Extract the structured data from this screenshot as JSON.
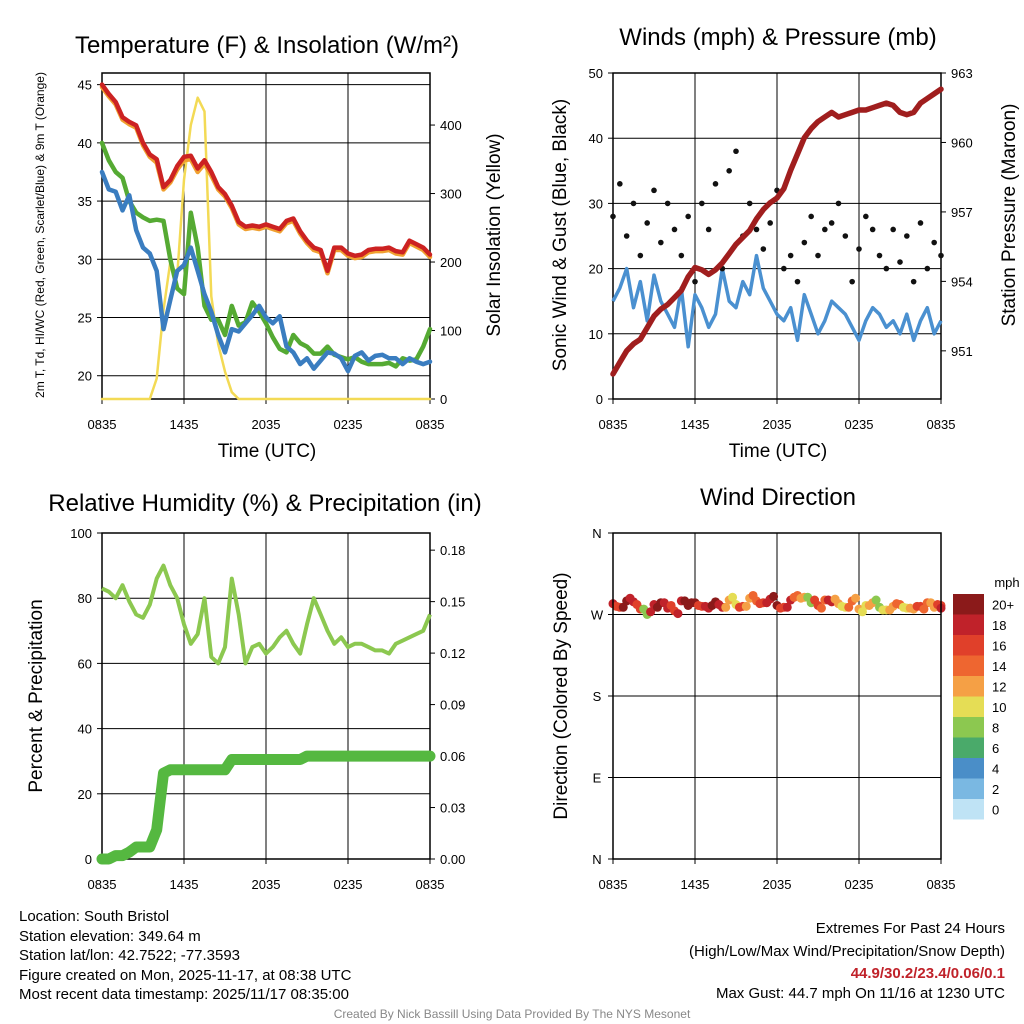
{
  "chart_data": [
    {
      "type": "line",
      "title": "Temperature (F) & Insolation (W/m²)",
      "xlabel": "Time (UTC)",
      "ylabel": "2m T, Td, HI/WC (Red, Green, Scarlet/Blue) & 9m T (Orange)",
      "y2label": "Solar Insolation (Yellow)",
      "x_ticks": [
        "0835",
        "1435",
        "2035",
        "0235",
        "0835"
      ],
      "ylim": [
        18,
        46
      ],
      "y_ticks": [
        20,
        25,
        30,
        35,
        40,
        45
      ],
      "y2lim": [
        0,
        476
      ],
      "y2_ticks": [
        0,
        100,
        200,
        300,
        400
      ],
      "hours": [
        0,
        0.5,
        1,
        1.5,
        2,
        2.5,
        3,
        3.5,
        4,
        4.5,
        5,
        5.5,
        6,
        6.5,
        7,
        7.5,
        8,
        8.5,
        9,
        9.5,
        10,
        10.5,
        11,
        11.5,
        12,
        12.5,
        13,
        13.5,
        14,
        14.5,
        15,
        15.5,
        16,
        16.5,
        17,
        17.5,
        18,
        18.5,
        19,
        19.5,
        20,
        20.5,
        21,
        21.5,
        22,
        22.5,
        23,
        23.5,
        24
      ],
      "series": [
        {
          "name": "2m T",
          "color": "#cc2222",
          "values": [
            45,
            44.2,
            43.5,
            42.2,
            41.8,
            41.5,
            40,
            39,
            38.6,
            36.2,
            36.8,
            38,
            38.8,
            38.9,
            37.8,
            38.5,
            37.5,
            36.2,
            35.6,
            34.6,
            33.2,
            32.8,
            32.9,
            32.8,
            33,
            32.8,
            32.6,
            33.3,
            33.5,
            32.4,
            31.6,
            31,
            30.8,
            29,
            31,
            31,
            30.5,
            30.3,
            30.4,
            30.8,
            30.9,
            30.9,
            31,
            30.7,
            30.6,
            31.6,
            31.3,
            31,
            30.4
          ]
        },
        {
          "name": "9m T",
          "color": "#f0a030",
          "values": [
            44.8,
            44,
            43.3,
            42,
            41.6,
            41.3,
            39.8,
            38.8,
            38.3,
            36,
            36.6,
            37.7,
            38.5,
            38.6,
            37.5,
            38.2,
            37.2,
            36,
            35.4,
            34.4,
            33,
            32.6,
            32.7,
            32.6,
            32.8,
            32.6,
            32.4,
            33.1,
            33.3,
            32.2,
            31.4,
            30.8,
            30.6,
            28.8,
            30.8,
            30.8,
            30.3,
            30.1,
            30.2,
            30.6,
            30.7,
            30.7,
            30.8,
            30.5,
            30.4,
            31.4,
            31.1,
            30.8,
            30.2
          ]
        },
        {
          "name": "Td",
          "color": "#55aa33",
          "values": [
            40,
            38.5,
            37.5,
            37,
            35,
            34,
            33.6,
            33.3,
            33.4,
            33.3,
            30,
            27.5,
            27,
            34,
            31,
            26,
            24.8,
            24.8,
            23.5,
            26,
            24.3,
            24.6,
            26.3,
            25.5,
            24.5,
            23.3,
            22.3,
            22,
            23.5,
            22.8,
            22.5,
            21.9,
            21.9,
            22.5,
            21.8,
            21.6,
            21.4,
            21.6,
            21.2,
            21,
            21,
            21,
            21.1,
            20.8,
            21.5,
            21.3,
            21.4,
            22.5,
            24
          ]
        },
        {
          "name": "HI/WC",
          "color": "#3a7dc0",
          "values": [
            37.5,
            36,
            35.8,
            34.2,
            35.5,
            32.5,
            31,
            30.5,
            29,
            24,
            26.5,
            29,
            29.5,
            31,
            29,
            27,
            25.5,
            23.5,
            22,
            24,
            23.8,
            24.5,
            25.2,
            26,
            25,
            24.5,
            25.1,
            22.5,
            22,
            21,
            21.5,
            20.6,
            21.3,
            22,
            21.9,
            21.5,
            20.4,
            21.7,
            22,
            21.3,
            21.7,
            21.8,
            21.5,
            21.5,
            21,
            21.5,
            21.2,
            21,
            21.2
          ]
        },
        {
          "name": "Solar",
          "color": "#f3da55",
          "values": [
            0,
            0,
            0,
            0,
            0,
            0,
            0,
            0,
            30,
            130,
            200,
            180,
            320,
            400,
            440,
            420,
            150,
            80,
            40,
            10,
            0,
            0,
            0,
            0,
            0,
            0,
            0,
            0,
            0,
            0,
            0,
            0,
            0,
            0,
            0,
            0,
            0,
            0,
            0,
            0,
            0,
            0,
            0,
            0,
            0,
            0,
            0,
            0,
            0
          ]
        }
      ]
    },
    {
      "type": "line+scatter",
      "title": "Winds (mph) & Pressure (mb)",
      "xlabel": "Time (UTC)",
      "ylabel": "Sonic Wind & Gust (Blue, Black)",
      "y2label": "Station Pressure (Maroon)",
      "x_ticks": [
        "0835",
        "1435",
        "2035",
        "0235",
        "0835"
      ],
      "ylim": [
        0,
        50
      ],
      "y_ticks": [
        0,
        10,
        20,
        30,
        40,
        50
      ],
      "y2lim": [
        948.92,
        963
      ],
      "y2_ticks": [
        951,
        954,
        957,
        960,
        963
      ],
      "hours": [
        0,
        0.5,
        1,
        1.5,
        2,
        2.5,
        3,
        3.5,
        4,
        4.5,
        5,
        5.5,
        6,
        6.5,
        7,
        7.5,
        8,
        8.5,
        9,
        9.5,
        10,
        10.5,
        11,
        11.5,
        12,
        12.5,
        13,
        13.5,
        14,
        14.5,
        15,
        15.5,
        16,
        16.5,
        17,
        17.5,
        18,
        18.5,
        19,
        19.5,
        20,
        20.5,
        21,
        21.5,
        22,
        22.5,
        23,
        23.5,
        24
      ],
      "series": [
        {
          "name": "Sonic Wind",
          "color": "#4a90d0",
          "values": [
            15,
            17,
            20,
            14,
            18,
            12,
            19,
            15,
            13,
            11,
            17,
            8,
            16,
            14,
            11,
            13,
            20,
            15,
            14,
            18,
            16,
            22,
            17,
            15,
            13,
            12,
            14,
            9,
            16,
            13,
            10,
            12,
            15,
            14,
            13,
            11,
            9,
            12,
            14,
            13,
            11,
            12,
            10,
            13,
            9,
            12,
            14,
            10,
            12
          ]
        },
        {
          "name": "Gust",
          "color": "#111111",
          "values": [
            28,
            33,
            25,
            30,
            22,
            27,
            32,
            24,
            30,
            26,
            22,
            28,
            18,
            30,
            26,
            33,
            20,
            35,
            38,
            25,
            30,
            26,
            23,
            27,
            32,
            20,
            22,
            18,
            24,
            28,
            22,
            26,
            27,
            30,
            25,
            18,
            23,
            28,
            26,
            22,
            20,
            26,
            21,
            25,
            18,
            27,
            20,
            24,
            22
          ]
        },
        {
          "name": "Pressure",
          "color": "#a01e1e",
          "values": [
            950.0,
            950.5,
            951.0,
            951.3,
            951.5,
            952.0,
            952.5,
            952.8,
            953.0,
            953.3,
            953.6,
            954.2,
            954.6,
            954.5,
            954.3,
            954.5,
            954.8,
            955.2,
            955.6,
            955.9,
            956.2,
            956.7,
            957.1,
            957.4,
            957.6,
            958.0,
            958.8,
            959.5,
            960.2,
            960.6,
            960.9,
            961.1,
            961.3,
            961.1,
            961.2,
            961.3,
            961.4,
            961.4,
            961.5,
            961.6,
            961.7,
            961.6,
            961.3,
            961.2,
            961.3,
            961.7,
            961.9,
            962.1,
            962.3
          ]
        }
      ]
    },
    {
      "type": "line",
      "title": "Relative Humidity (%) & Precipitation (in)",
      "xlabel": "",
      "ylabel": "Percent & Precipitation",
      "x_ticks": [
        "0835",
        "1435",
        "2035",
        "0235",
        "0835"
      ],
      "ylim": [
        0,
        100
      ],
      "y_ticks": [
        0,
        20,
        40,
        60,
        80,
        100
      ],
      "y2lim": [
        0,
        0.19
      ],
      "y2_ticks": [
        "0.00",
        "0.03",
        "0.06",
        "0.09",
        "0.12",
        "0.15",
        "0.18"
      ],
      "hours": [
        0,
        0.5,
        1,
        1.5,
        2,
        2.5,
        3,
        3.5,
        4,
        4.5,
        5,
        5.5,
        6,
        6.5,
        7,
        7.5,
        8,
        8.5,
        9,
        9.5,
        10,
        10.5,
        11,
        11.5,
        12,
        12.5,
        13,
        13.5,
        14,
        14.5,
        15,
        15.5,
        16,
        16.5,
        17,
        17.5,
        18,
        18.5,
        19,
        19.5,
        20,
        20.5,
        21,
        21.5,
        22,
        22.5,
        23,
        23.5,
        24
      ],
      "series": [
        {
          "name": "RH",
          "color": "#8cc850",
          "values": [
            83,
            82,
            80,
            84,
            79,
            75,
            74,
            78,
            86,
            90,
            84,
            80,
            72,
            66,
            69,
            80,
            62,
            60,
            65,
            86,
            75,
            60,
            65,
            66,
            63,
            65,
            68,
            70,
            66,
            63,
            72,
            80,
            75,
            70,
            66,
            68,
            65,
            66,
            66,
            65,
            64,
            64,
            63,
            66,
            67,
            68,
            69,
            70,
            75
          ]
        },
        {
          "name": "Precipitation",
          "color": "#55b840",
          "values": [
            0.0,
            0.0,
            0.002,
            0.002,
            0.004,
            0.007,
            0.007,
            0.007,
            0.017,
            0.05,
            0.052,
            0.052,
            0.052,
            0.052,
            0.052,
            0.052,
            0.052,
            0.052,
            0.052,
            0.058,
            0.058,
            0.058,
            0.058,
            0.058,
            0.058,
            0.058,
            0.058,
            0.058,
            0.058,
            0.058,
            0.06,
            0.06,
            0.06,
            0.06,
            0.06,
            0.06,
            0.06,
            0.06,
            0.06,
            0.06,
            0.06,
            0.06,
            0.06,
            0.06,
            0.06,
            0.06,
            0.06,
            0.06,
            0.06
          ]
        }
      ]
    },
    {
      "type": "scatter",
      "title": "Wind Direction",
      "ylabel": "Direction (Colored By Speed)",
      "x_ticks": [
        "0835",
        "1435",
        "2035",
        "0235",
        "0835"
      ],
      "y_ticks": [
        "N",
        "E",
        "S",
        "W",
        "N"
      ],
      "ylim": [
        0,
        360
      ],
      "legend_title": "mph",
      "legend_labels": [
        "20+",
        "18",
        "16",
        "14",
        "12",
        "10",
        "8",
        "6",
        "4",
        "2",
        "0"
      ],
      "legend_colors": [
        "#8b1a1a",
        "#c0222a",
        "#e0402a",
        "#ee6630",
        "#f5a045",
        "#e5dd55",
        "#8cc850",
        "#4aaa6a",
        "#4a8ec8",
        "#7ab8e2",
        "#bfe3f5"
      ],
      "hours": [
        0,
        0.5,
        1,
        1.5,
        2,
        2.5,
        3,
        3.5,
        4,
        4.5,
        5,
        5.5,
        6,
        6.5,
        7,
        7.5,
        8,
        8.5,
        9,
        9.5,
        10,
        10.5,
        11,
        11.5,
        12,
        12.5,
        13,
        13.5,
        14,
        14.5,
        15,
        15.5,
        16,
        16.5,
        17,
        17.5,
        18,
        18.5,
        19,
        19.5,
        20,
        20.5,
        21,
        21.5,
        22,
        22.5,
        23,
        23.5,
        24
      ],
      "directions": [
        282,
        278,
        285,
        284,
        276,
        270,
        281,
        283,
        277,
        274,
        285,
        280,
        283,
        279,
        277,
        284,
        278,
        286,
        281,
        279,
        288,
        285,
        283,
        287,
        280,
        278,
        286,
        291,
        289,
        283,
        280,
        286,
        284,
        282,
        278,
        285,
        276,
        280,
        283,
        278,
        275,
        279,
        281,
        277,
        276,
        279,
        283,
        278,
        280
      ],
      "speed_colors": [
        "#c0222a",
        "#e0402a",
        "#8b1a1a",
        "#c0222a",
        "#e0402a",
        "#8cc850",
        "#c0222a",
        "#8b1a1a",
        "#c0222a",
        "#e0402a",
        "#c0222a",
        "#8b1a1a",
        "#8b1a1a",
        "#e0402a",
        "#c0222a",
        "#8b1a1a",
        "#c0222a",
        "#f5a045",
        "#e5dd55",
        "#e0402a",
        "#f5a045",
        "#ee6630",
        "#e0402a",
        "#c0222a",
        "#8b1a1a",
        "#e0402a",
        "#c0222a",
        "#ee6630",
        "#f5a045",
        "#8cc850",
        "#e0402a",
        "#ee6630",
        "#c0222a",
        "#f5a045",
        "#e5dd55",
        "#ee6630",
        "#f5a045",
        "#e5dd55",
        "#f5a045",
        "#8cc850",
        "#e5dd55",
        "#f5a045",
        "#ee6630",
        "#e5dd55",
        "#f5a045",
        "#e0402a",
        "#ee6630",
        "#f5a045",
        "#e0402a"
      ]
    }
  ],
  "footer": {
    "location": "Location: South Bristol",
    "elevation": "Station elevation: 349.64 m",
    "latlon": "Station lat/lon: 42.7522; -77.3593",
    "created": "Figure created on Mon, 2025-11-17, at 08:38 UTC",
    "recent": "Most recent data timestamp: 2025/11/17 08:35:00",
    "extremes_title": "Extremes For Past 24 Hours",
    "extremes_sub": "(High/Low/Max Wind/Precipitation/Snow Depth)",
    "extremes_values": "44.9/30.2/23.4/0.06/0.1",
    "max_gust": "Max Gust: 44.7 mph On 11/16 at 1230 UTC",
    "credit": "Created By Nick Bassill Using Data Provided By The NYS Mesonet",
    "extremes_color": "#c0222a"
  }
}
